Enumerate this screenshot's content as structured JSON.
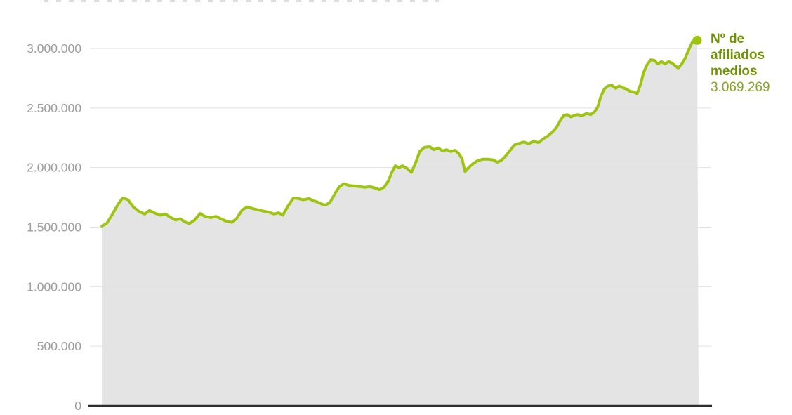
{
  "chart_data": {
    "type": "area",
    "title": "",
    "xlabel": "",
    "ylabel": "",
    "x_tick_labels": [],
    "ylim": [
      0,
      3000000
    ],
    "grid": true,
    "legend_position": "right-annotation",
    "series_label": "Nº de afiliados medios",
    "annotation": {
      "label_lines": [
        "Nº de",
        "afiliados",
        "medios"
      ],
      "value": "3.069.269"
    },
    "last_value": 3069269,
    "y_ticks": [
      {
        "value": 3000000,
        "label": "3.000.000"
      },
      {
        "value": 2500000,
        "label": "2.500.000"
      },
      {
        "value": 2000000,
        "label": "2.000.000"
      },
      {
        "value": 1500000,
        "label": "1.500.000"
      },
      {
        "value": 1000000,
        "label": "1.000.000"
      },
      {
        "value": 500000,
        "label": "500.000"
      },
      {
        "value": 0,
        "label": "0"
      }
    ],
    "x": [
      0,
      0.008,
      0.018,
      0.027,
      0.035,
      0.044,
      0.053,
      0.063,
      0.072,
      0.08,
      0.088,
      0.098,
      0.107,
      0.116,
      0.124,
      0.132,
      0.139,
      0.147,
      0.156,
      0.165,
      0.173,
      0.183,
      0.192,
      0.2,
      0.209,
      0.218,
      0.226,
      0.236,
      0.244,
      0.254,
      0.263,
      0.271,
      0.281,
      0.289,
      0.297,
      0.304,
      0.313,
      0.322,
      0.33,
      0.338,
      0.348,
      0.356,
      0.363,
      0.369,
      0.375,
      0.383,
      0.392,
      0.399,
      0.407,
      0.415,
      0.425,
      0.433,
      0.442,
      0.45,
      0.458,
      0.466,
      0.474,
      0.481,
      0.487,
      0.493,
      0.499,
      0.505,
      0.512,
      0.52,
      0.527,
      0.534,
      0.542,
      0.551,
      0.558,
      0.565,
      0.572,
      0.579,
      0.586,
      0.593,
      0.599,
      0.605,
      0.61,
      0.617,
      0.624,
      0.632,
      0.64,
      0.649,
      0.657,
      0.664,
      0.671,
      0.678,
      0.685,
      0.693,
      0.702,
      0.709,
      0.717,
      0.725,
      0.734,
      0.741,
      0.749,
      0.757,
      0.764,
      0.77,
      0.776,
      0.782,
      0.788,
      0.794,
      0.8,
      0.807,
      0.814,
      0.821,
      0.827,
      0.833,
      0.838,
      0.844,
      0.85,
      0.857,
      0.863,
      0.869,
      0.875,
      0.881,
      0.887,
      0.893,
      0.899,
      0.905,
      0.91,
      0.916,
      0.922,
      0.928,
      0.934,
      0.94,
      0.946,
      0.952,
      0.958,
      0.963,
      0.968,
      0.974,
      0.98,
      0.986,
      0.992,
      0.997,
      1
    ],
    "values": [
      1510000,
      1530000,
      1610000,
      1690000,
      1745000,
      1730000,
      1670000,
      1630000,
      1610000,
      1640000,
      1620000,
      1600000,
      1610000,
      1580000,
      1560000,
      1570000,
      1545000,
      1530000,
      1560000,
      1615000,
      1590000,
      1580000,
      1590000,
      1570000,
      1550000,
      1540000,
      1570000,
      1645000,
      1670000,
      1655000,
      1645000,
      1635000,
      1625000,
      1610000,
      1620000,
      1600000,
      1680000,
      1745000,
      1740000,
      1730000,
      1740000,
      1720000,
      1710000,
      1695000,
      1685000,
      1705000,
      1785000,
      1840000,
      1865000,
      1850000,
      1845000,
      1840000,
      1835000,
      1840000,
      1830000,
      1815000,
      1835000,
      1885000,
      1960000,
      2015000,
      2000000,
      2015000,
      1995000,
      1960000,
      2040000,
      2135000,
      2170000,
      2175000,
      2150000,
      2165000,
      2140000,
      2150000,
      2135000,
      2145000,
      2120000,
      2075000,
      1965000,
      2005000,
      2035000,
      2060000,
      2070000,
      2070000,
      2065000,
      2045000,
      2060000,
      2095000,
      2140000,
      2190000,
      2205000,
      2215000,
      2200000,
      2220000,
      2210000,
      2240000,
      2265000,
      2300000,
      2340000,
      2395000,
      2440000,
      2445000,
      2425000,
      2440000,
      2445000,
      2435000,
      2455000,
      2445000,
      2465000,
      2510000,
      2595000,
      2660000,
      2685000,
      2690000,
      2665000,
      2685000,
      2670000,
      2660000,
      2640000,
      2635000,
      2620000,
      2700000,
      2800000,
      2865000,
      2905000,
      2900000,
      2870000,
      2890000,
      2870000,
      2890000,
      2875000,
      2855000,
      2835000,
      2870000,
      2920000,
      2990000,
      3055000,
      3085000,
      3069269
    ],
    "line_color": "#9ec412",
    "fill_color": "#e4e4e4",
    "grid_color": "#e2e2e2",
    "baseline_color": "#2d2d2d",
    "axis_label_color": "#9d9d9d",
    "annotation_label_color": "#6f9202",
    "annotation_value_color": "#84a620"
  }
}
